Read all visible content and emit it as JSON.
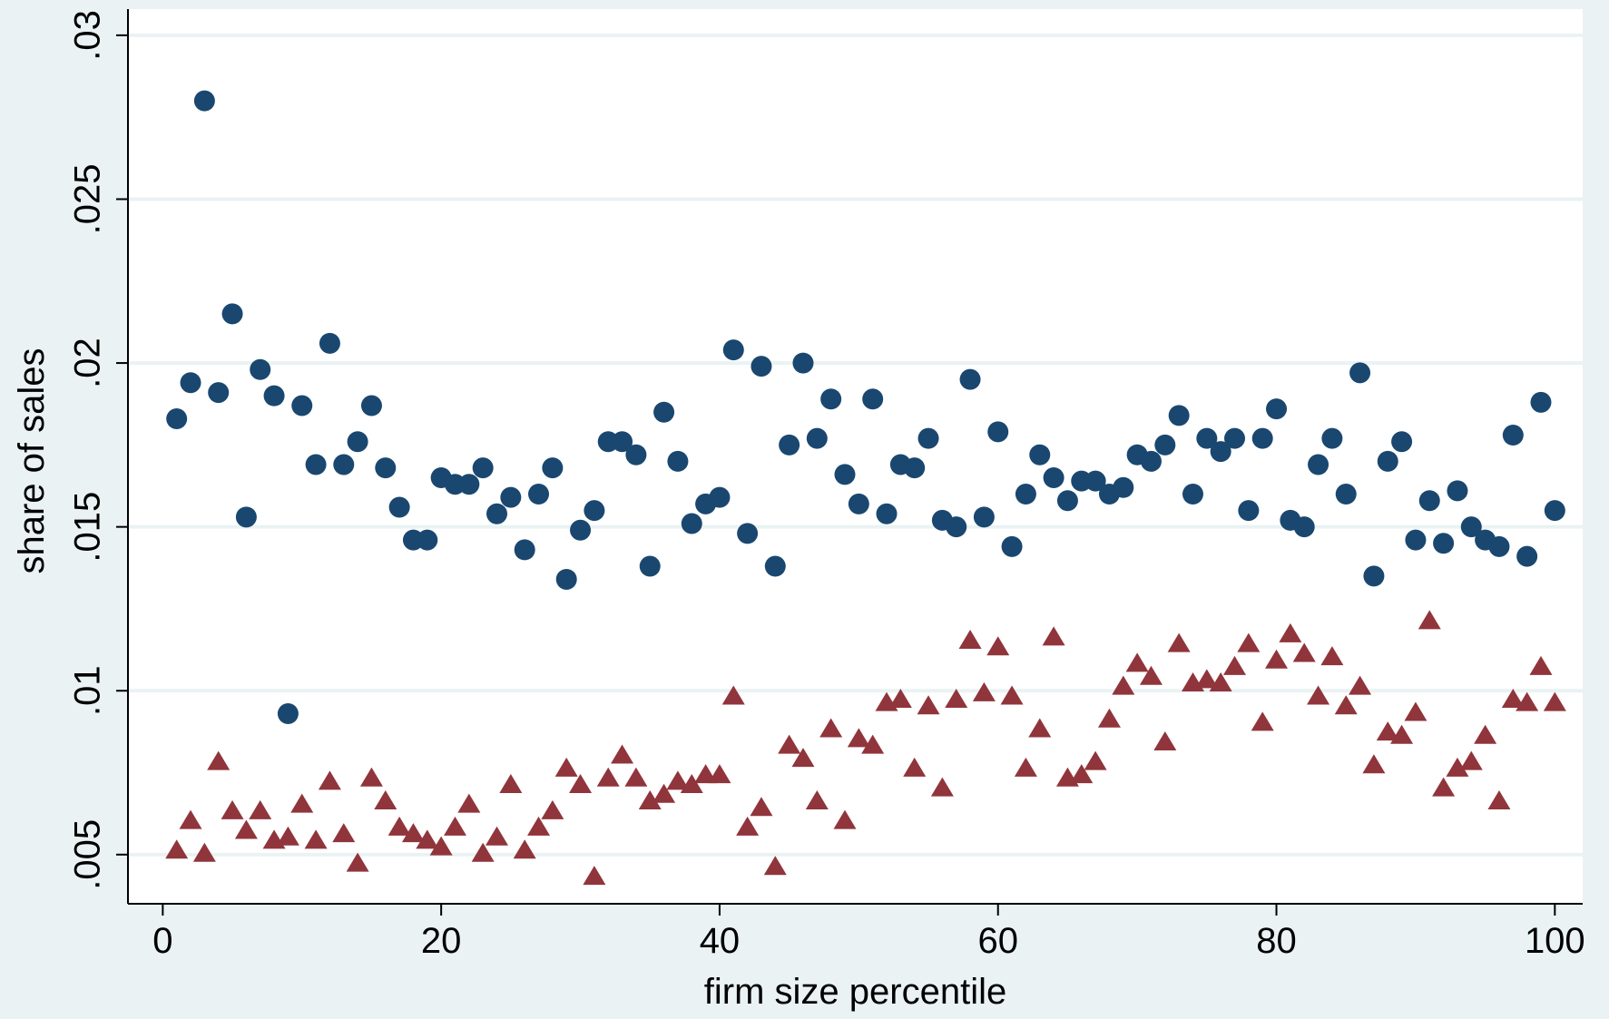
{
  "chart_data": {
    "type": "scatter",
    "title": "",
    "xlabel": "firm size percentile",
    "ylabel": "share of sales",
    "xlim": [
      -2.5,
      102
    ],
    "ylim": [
      0.0035,
      0.0308
    ],
    "xticks": [
      0,
      20,
      40,
      60,
      80,
      100
    ],
    "xtick_labels": [
      "0",
      "20",
      "40",
      "60",
      "80",
      "100"
    ],
    "yticks": [
      0.005,
      0.01,
      0.015,
      0.02,
      0.025,
      0.03
    ],
    "ytick_labels": [
      ".005",
      ".01",
      ".015",
      ".02",
      ".025",
      ".03"
    ],
    "grid": true,
    "legend": "none",
    "colors": {
      "background": "#eaf2f3",
      "plot_area": "#ffffff",
      "gridline": "#eaf2f3",
      "axis": "#000000"
    },
    "x": [
      1,
      2,
      3,
      4,
      5,
      6,
      7,
      8,
      9,
      10,
      11,
      12,
      13,
      14,
      15,
      16,
      17,
      18,
      19,
      20,
      21,
      22,
      23,
      24,
      25,
      26,
      27,
      28,
      29,
      30,
      31,
      32,
      33,
      34,
      35,
      36,
      37,
      38,
      39,
      40,
      41,
      42,
      43,
      44,
      45,
      46,
      47,
      48,
      49,
      50,
      51,
      52,
      53,
      54,
      55,
      56,
      57,
      58,
      59,
      60,
      61,
      62,
      63,
      64,
      65,
      66,
      67,
      68,
      69,
      70,
      71,
      72,
      73,
      74,
      75,
      76,
      77,
      78,
      79,
      80,
      81,
      82,
      83,
      84,
      85,
      86,
      87,
      88,
      89,
      90,
      91,
      92,
      93,
      94,
      95,
      96,
      97,
      98,
      99,
      100
    ],
    "series": [
      {
        "marker": "circle",
        "color": "#1a476f",
        "values": [
          0.0183,
          0.0194,
          0.028,
          0.0191,
          0.0215,
          0.0153,
          0.0198,
          0.019,
          0.0093,
          0.0187,
          0.0169,
          0.0206,
          0.0169,
          0.0176,
          0.0187,
          0.0168,
          0.0156,
          0.0146,
          0.0146,
          0.0165,
          0.0163,
          0.0163,
          0.0168,
          0.0154,
          0.0159,
          0.0143,
          0.016,
          0.0168,
          0.0134,
          0.0149,
          0.0155,
          0.0176,
          0.0176,
          0.0172,
          0.0138,
          0.0185,
          0.017,
          0.0151,
          0.0157,
          0.0159,
          0.0204,
          0.0148,
          0.0199,
          0.0138,
          0.0175,
          0.02,
          0.0177,
          0.0189,
          0.0166,
          0.0157,
          0.0189,
          0.0154,
          0.0169,
          0.0168,
          0.0177,
          0.0152,
          0.015,
          0.0195,
          0.0153,
          0.0179,
          0.0144,
          0.016,
          0.0172,
          0.0165,
          0.0158,
          0.0164,
          0.0164,
          0.016,
          0.0162,
          0.0172,
          0.017,
          0.0175,
          0.0184,
          0.016,
          0.0177,
          0.0173,
          0.0177,
          0.0155,
          0.0177,
          0.0186,
          0.0152,
          0.015,
          0.0169,
          0.0177,
          0.016,
          0.0197,
          0.0135,
          0.017,
          0.0176,
          0.0146,
          0.0158,
          0.0145,
          0.0161,
          0.015,
          0.0146,
          0.0144,
          0.0178,
          0.0141,
          0.0188,
          0.0155
        ]
      },
      {
        "marker": "triangle",
        "color": "#90353b",
        "values": [
          0.0051,
          0.006,
          0.005,
          0.0078,
          0.0063,
          0.0057,
          0.0063,
          0.0054,
          0.0055,
          0.0065,
          0.0054,
          0.0072,
          0.0056,
          0.0047,
          0.0073,
          0.0066,
          0.0058,
          0.0056,
          0.0054,
          0.0052,
          0.0058,
          0.0065,
          0.005,
          0.0055,
          0.0071,
          0.0051,
          0.0058,
          0.0063,
          0.0076,
          0.0071,
          0.0043,
          0.0073,
          0.008,
          0.0073,
          0.0066,
          0.0068,
          0.0072,
          0.0071,
          0.0074,
          0.0074,
          0.0098,
          0.0058,
          0.0064,
          0.0046,
          0.0083,
          0.0079,
          0.0066,
          0.0088,
          0.006,
          0.0085,
          0.0083,
          0.0096,
          0.0097,
          0.0076,
          0.0095,
          0.007,
          0.0097,
          0.0115,
          0.0099,
          0.0113,
          0.0098,
          0.0076,
          0.0088,
          0.0116,
          0.0073,
          0.0074,
          0.0078,
          0.0091,
          0.0101,
          0.0108,
          0.0104,
          0.0084,
          0.0114,
          0.0102,
          0.0103,
          0.0102,
          0.0107,
          0.0114,
          0.009,
          0.0109,
          0.0117,
          0.0111,
          0.0098,
          0.011,
          0.0095,
          0.0101,
          0.0077,
          0.0087,
          0.0086,
          0.0093,
          0.0121,
          0.007,
          0.0076,
          0.0078,
          0.0086,
          0.0066,
          0.0097,
          0.0096,
          0.0107,
          0.0096
        ]
      }
    ]
  }
}
